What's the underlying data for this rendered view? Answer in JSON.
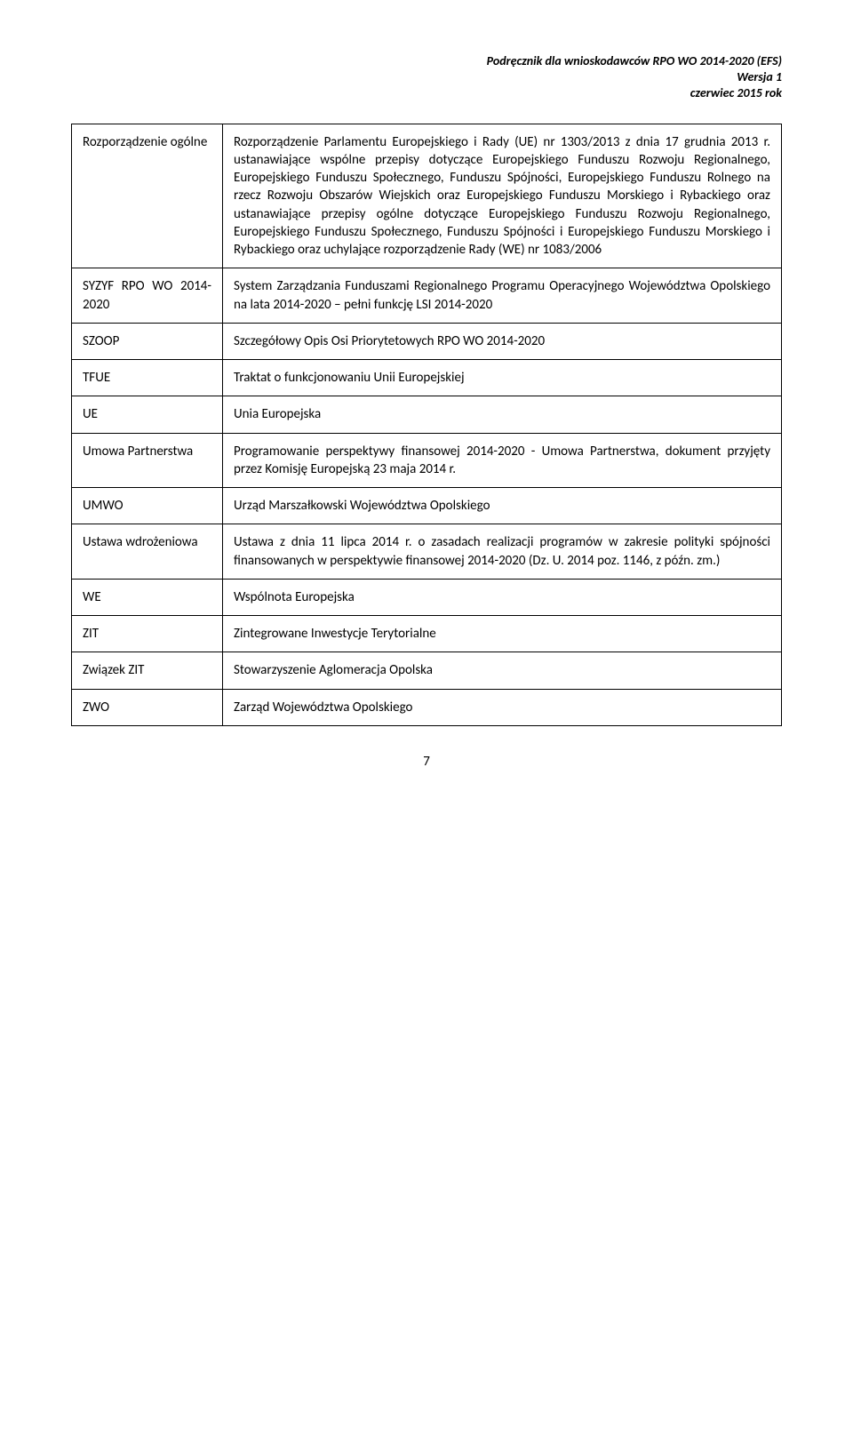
{
  "header": {
    "line1": "Podręcznik dla wnioskodawców RPO WO 2014-2020 (EFS)",
    "line2": "Wersja 1",
    "line3": "czerwiec 2015 rok"
  },
  "rows": [
    {
      "term": "Rozporządzenie ogólne",
      "def": "Rozporządzenie Parlamentu Europejskiego i Rady (UE) nr 1303/2013 z dnia 17 grudnia 2013 r. ustanawiające wspólne przepisy dotyczące Europejskiego Funduszu Rozwoju Regionalnego, Europejskiego Funduszu Społecznego, Funduszu Spójności, Europejskiego Funduszu Rolnego na rzecz Rozwoju Obszarów Wiejskich oraz Europejskiego Funduszu Morskiego i Rybackiego oraz ustanawiające przepisy ogólne dotyczące Europejskiego Funduszu Rozwoju Regionalnego, Europejskiego Funduszu Społecznego, Funduszu Spójności i Europejskiego Funduszu Morskiego i Rybackiego oraz uchylające rozporządzenie Rady (WE) nr 1083/2006"
    },
    {
      "term": "SYZYF RPO WO 2014-2020",
      "def": "System Zarządzania Funduszami Regionalnego Programu Operacyjnego Województwa Opolskiego na lata 2014-2020 – pełni funkcję LSI 2014-2020"
    },
    {
      "term": "SZOOP",
      "def": "Szczegółowy Opis Osi Priorytetowych RPO WO 2014-2020"
    },
    {
      "term": "TFUE",
      "def": "Traktat o funkcjonowaniu Unii Europejskiej"
    },
    {
      "term": "UE",
      "def": "Unia Europejska"
    },
    {
      "term": "Umowa Partnerstwa",
      "def": "Programowanie perspektywy finansowej 2014-2020 - Umowa Partnerstwa, dokument przyjęty przez Komisję Europejską 23 maja 2014 r."
    },
    {
      "term": "UMWO",
      "def": "Urząd Marszałkowski Województwa Opolskiego"
    },
    {
      "term": "Ustawa wdrożeniowa",
      "def": "Ustawa z dnia 11 lipca 2014 r. o zasadach realizacji programów w zakresie polityki spójności finansowanych w perspektywie finansowej 2014-2020 (Dz. U. 2014 poz. 1146, z późn. zm.)"
    },
    {
      "term": "WE",
      "def": "Wspólnota Europejska"
    },
    {
      "term": "ZIT",
      "def": "Zintegrowane Inwestycje Terytorialne"
    },
    {
      "term": "Związek ZIT",
      "def": "Stowarzyszenie Aglomeracja Opolska"
    },
    {
      "term": "ZWO",
      "def": "Zarząd Województwa Opolskiego"
    }
  ],
  "pageNumber": "7"
}
